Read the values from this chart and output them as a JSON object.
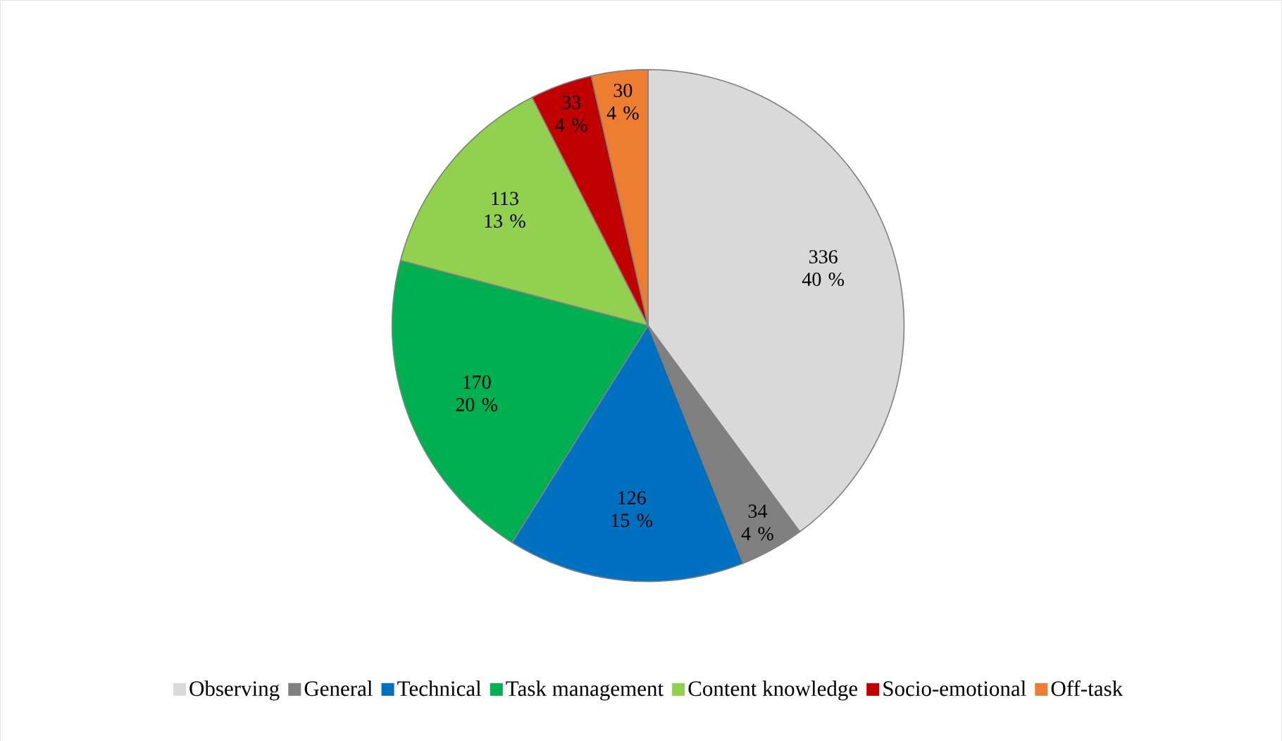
{
  "chart_data": {
    "type": "pie",
    "categories": [
      "Observing",
      "General",
      "Technical",
      "Task management",
      "Content knowledge",
      "Socio-emotional",
      "Off-task"
    ],
    "values": [
      336,
      34,
      126,
      170,
      113,
      33,
      30
    ],
    "colors": [
      "#d9d9d9",
      "#808080",
      "#0070c0",
      "#00b050",
      "#92d050",
      "#c00000",
      "#ed7d31"
    ],
    "value_labels": [
      "336 40 %",
      "34 4 %",
      "126 15 %",
      "170 20 %",
      "113 13 %",
      "33 4 %",
      "30 4 %"
    ],
    "legend": "bottom"
  }
}
